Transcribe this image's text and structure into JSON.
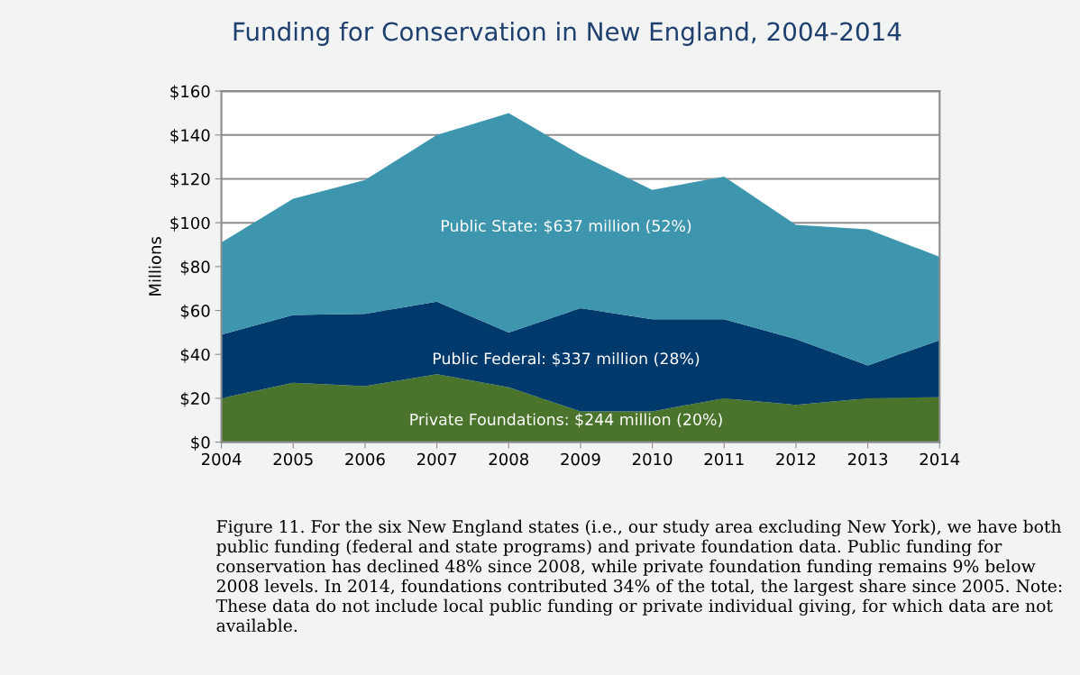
{
  "chart_data": {
    "type": "area",
    "title": "Funding for Conservation in New England, 2004-2014",
    "ylabel": "Millions",
    "stacked": true,
    "grid": "y",
    "categories": [
      "2004",
      "2005",
      "2006",
      "2007",
      "2008",
      "2009",
      "2010",
      "2011",
      "2012",
      "2013",
      "2014"
    ],
    "series": [
      {
        "name": "Private Foundations: $244 million (20%)",
        "color": "#4a742c",
        "values": [
          20,
          27,
          25.5,
          31,
          25,
          14,
          14,
          20,
          17,
          20,
          20.5
        ]
      },
      {
        "name": "Public Federal: $337 million (28%)",
        "color": "#003a6c",
        "values": [
          29,
          31,
          33,
          33,
          25,
          47,
          42,
          36,
          30,
          15,
          26
        ]
      },
      {
        "name": "Public State: $637 million (52%)",
        "color": "#3d96ae",
        "values": [
          42,
          53,
          61,
          76,
          100,
          70,
          59,
          65,
          52,
          62,
          38
        ]
      }
    ],
    "ylim": [
      0,
      160
    ],
    "yticks": [
      {
        "value": 0,
        "label": "$0"
      },
      {
        "value": 20,
        "label": "$20"
      },
      {
        "value": 40,
        "label": "$40"
      },
      {
        "value": 60,
        "label": "$60"
      },
      {
        "value": 80,
        "label": "$80"
      },
      {
        "value": 100,
        "label": "$100"
      },
      {
        "value": 120,
        "label": "$120"
      },
      {
        "value": 140,
        "label": "$140"
      },
      {
        "value": 160,
        "label": "$160"
      }
    ],
    "annotations": [
      "Figure 11. For the six New England states (i.e., our study area excluding New York), we have both public funding (federal and state programs) and private foundation data. Public funding for conservation has declined 48% since 2008, while private foundation funding remains 9% below 2008 levels. In 2014, foundations contributed 34% of the total, the largest share since 2005. Note: These data do not include local public funding or private individual giving, for which data are not available."
    ]
  }
}
